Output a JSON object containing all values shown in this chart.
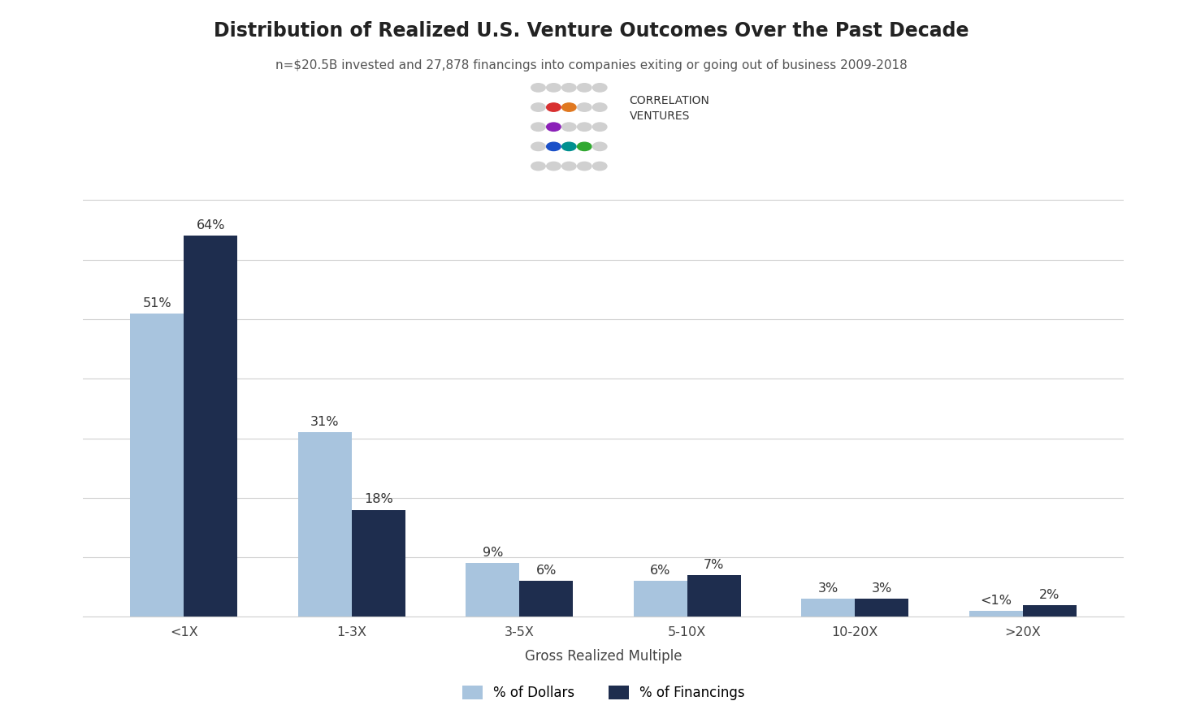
{
  "title": "Distribution of Realized U.S. Venture Outcomes Over the Past Decade",
  "subtitle": "n=$20.5B invested and 27,878 financings into companies exiting or going out of business 2009-2018",
  "categories": [
    "<1X",
    "1-3X",
    "3-5X",
    "5-10X",
    "10-20X",
    ">20X"
  ],
  "dollars": [
    51,
    31,
    9,
    6,
    3,
    1
  ],
  "financings": [
    64,
    18,
    6,
    7,
    3,
    2
  ],
  "dollar_labels": [
    "51%",
    "31%",
    "9%",
    "6%",
    "3%",
    "<1%"
  ],
  "financing_labels": [
    "64%",
    "18%",
    "6%",
    "7%",
    "3%",
    "2%"
  ],
  "color_dollars": "#a8c4de",
  "color_financings": "#1e2d4e",
  "xlabel": "Gross Realized Multiple",
  "legend_dollars": "% of Dollars",
  "legend_financings": "% of Financings",
  "title_fontsize": 17,
  "subtitle_fontsize": 11,
  "label_fontsize": 11.5,
  "axis_label_fontsize": 12,
  "legend_fontsize": 12,
  "background_color": "#ffffff",
  "grid_color": "#d0d0d0",
  "ylim": [
    0,
    73
  ],
  "bar_width": 0.32,
  "logo_dot_colors": [
    [
      "#d0d0d0",
      "#d0d0d0",
      "#d0d0d0",
      "#d0d0d0",
      "#d0d0d0"
    ],
    [
      "#d0d0d0",
      "#d83030",
      "#e07820",
      "#d0d0d0",
      "#d0d0d0"
    ],
    [
      "#d0d0d0",
      "#8b20b8",
      "#d0d0d0",
      "#d0d0d0",
      "#d0d0d0"
    ],
    [
      "#d0d0d0",
      "#1a50c8",
      "#009090",
      "#30a830",
      "#d0d0d0"
    ],
    [
      "#d0d0d0",
      "#d0d0d0",
      "#d0d0d0",
      "#d0d0d0",
      "#d0d0d0"
    ]
  ]
}
